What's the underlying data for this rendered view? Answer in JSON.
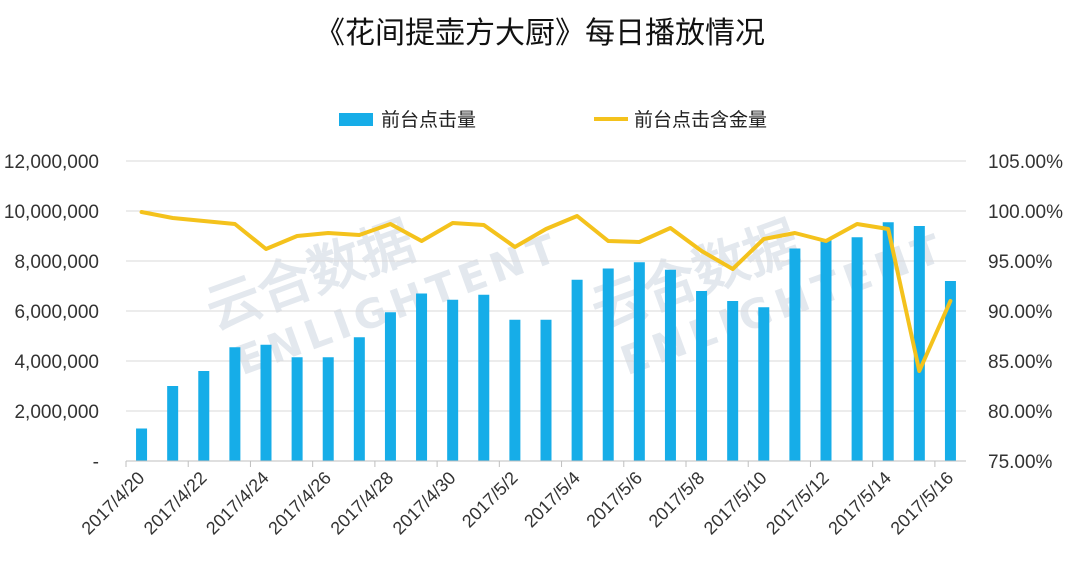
{
  "chart_data": {
    "type": "bar",
    "title": "《花间提壶方大厨》每日播放情况",
    "categories": [
      "2017/4/20",
      "2017/4/21",
      "2017/4/22",
      "2017/4/23",
      "2017/4/24",
      "2017/4/25",
      "2017/4/26",
      "2017/4/27",
      "2017/4/28",
      "2017/4/29",
      "2017/4/30",
      "2017/5/1",
      "2017/5/2",
      "2017/5/3",
      "2017/5/4",
      "2017/5/5",
      "2017/5/6",
      "2017/5/7",
      "2017/5/8",
      "2017/5/9",
      "2017/5/10",
      "2017/5/11",
      "2017/5/12",
      "2017/5/13",
      "2017/5/14",
      "2017/5/15",
      "2017/5/16"
    ],
    "x_tick_labels": [
      "2017/4/20",
      "2017/4/22",
      "2017/4/24",
      "2017/4/26",
      "2017/4/28",
      "2017/4/30",
      "2017/5/2",
      "2017/5/4",
      "2017/5/6",
      "2017/5/8",
      "2017/5/10",
      "2017/5/12",
      "2017/5/14",
      "2017/5/16"
    ],
    "series": [
      {
        "name": "前台点击量",
        "type": "bar",
        "axis": "left",
        "color": "#16ade8",
        "values": [
          1300000,
          3000000,
          3600000,
          4550000,
          4650000,
          4150000,
          4150000,
          4950000,
          5950000,
          6700000,
          6450000,
          6650000,
          5650000,
          5650000,
          7250000,
          7700000,
          7950000,
          7650000,
          6800000,
          6400000,
          6150000,
          8500000,
          8850000,
          8950000,
          9550000,
          9400000,
          7200000
        ]
      },
      {
        "name": "前台点击含金量",
        "type": "line",
        "axis": "right",
        "color": "#f4c21c",
        "values": [
          99.9,
          99.3,
          99.0,
          98.7,
          96.2,
          97.5,
          97.8,
          97.6,
          98.7,
          97.0,
          98.8,
          98.6,
          96.4,
          98.2,
          99.5,
          97.0,
          96.9,
          98.3,
          96.0,
          94.2,
          97.2,
          97.8,
          97.0,
          98.7,
          98.2,
          84.0,
          91.0
        ]
      }
    ],
    "ylim_left": [
      0,
      12000000
    ],
    "ylim_right": [
      75,
      105
    ],
    "left_tick_labels": [
      "-",
      "2,000,000",
      "4,000,000",
      "6,000,000",
      "8,000,000",
      "10,000,000",
      "12,000,000"
    ],
    "right_tick_labels": [
      "75.00%",
      "80.00%",
      "85.00%",
      "90.00%",
      "95.00%",
      "100.00%",
      "105.00%"
    ],
    "grid": true,
    "legend_position": "top",
    "watermark": "云合数据 ENLIGHTENT"
  }
}
